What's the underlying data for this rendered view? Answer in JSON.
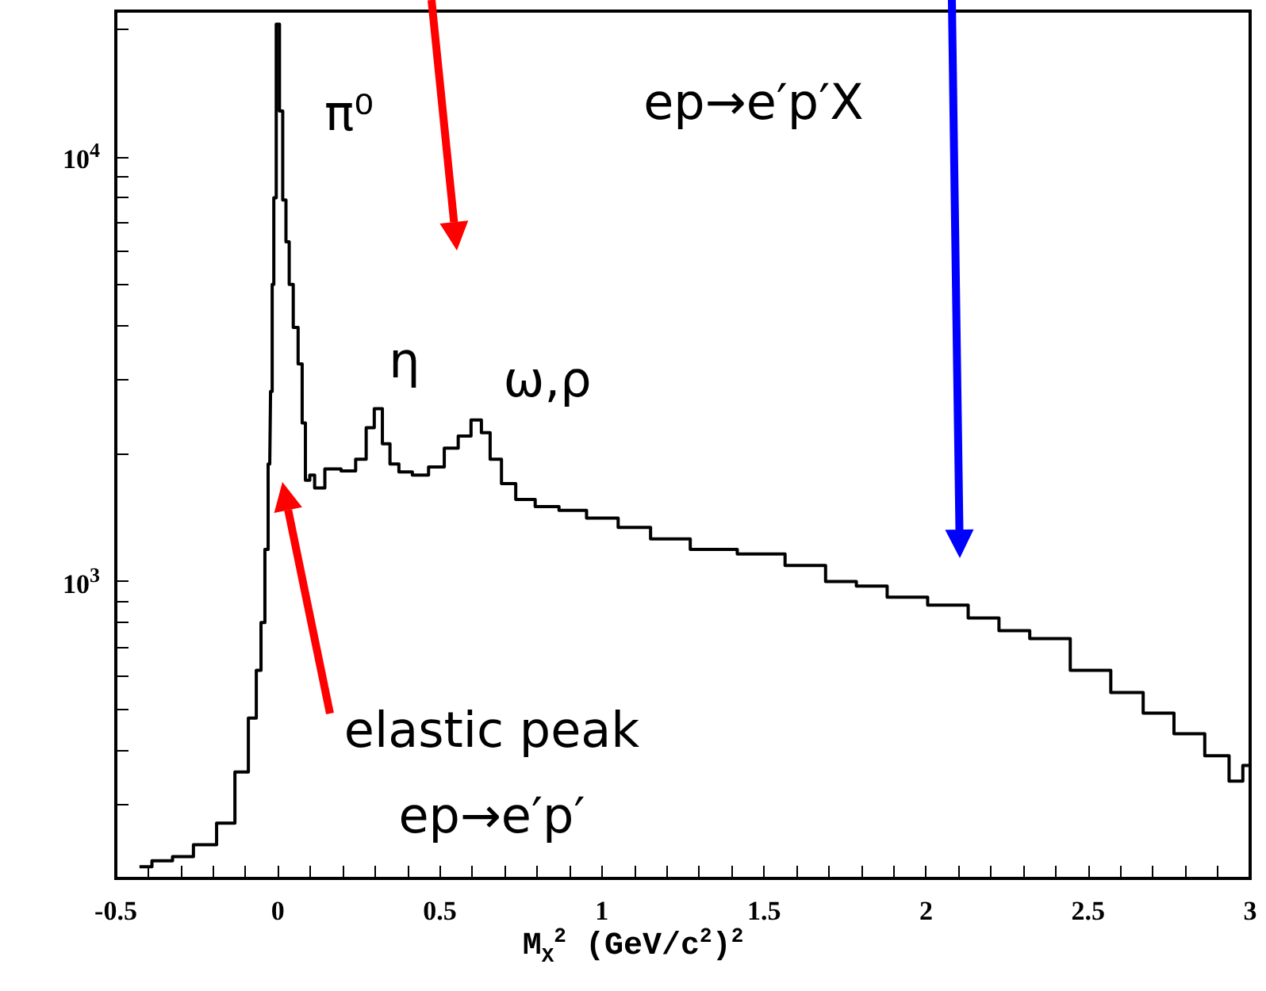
{
  "chart_data": {
    "type": "step",
    "xlabel": "M$_{X}$$^{2}$  (GeV/c$^{2}$)$^{2}$",
    "x": [
      -0.427,
      -0.35,
      -0.3,
      -0.221,
      -0.157,
      -0.108,
      -0.074,
      -0.059,
      -0.045,
      -0.035,
      -0.025,
      -0.02,
      -0.015,
      -0.01,
      0.0,
      0.01,
      0.02,
      0.03,
      0.04,
      0.055,
      0.07,
      0.08,
      0.09,
      0.107,
      0.12,
      0.17,
      0.22,
      0.26,
      0.285,
      0.31,
      0.335,
      0.357,
      0.39,
      0.44,
      0.49,
      0.537,
      0.576,
      0.616,
      0.64,
      0.67,
      0.71,
      0.758,
      0.83,
      0.905,
      1.0,
      1.1,
      1.2,
      1.345,
      1.49,
      1.64,
      1.74,
      1.83,
      1.93,
      2.08,
      2.18,
      2.27,
      2.37,
      2.52,
      2.62,
      2.72,
      2.81,
      2.91,
      2.96,
      2.995
    ],
    "values": [
      213,
      220,
      225,
      240,
      270,
      356,
      477,
      618,
      800,
      1190,
      1890,
      2800,
      5000,
      8000,
      20500,
      12800,
      7900,
      6300,
      5000,
      3960,
      3250,
      2360,
      1730,
      1780,
      1660,
      1840,
      1820,
      1940,
      2300,
      2550,
      2110,
      1890,
      1810,
      1780,
      1860,
      2060,
      2200,
      2400,
      2240,
      1940,
      1700,
      1560,
      1500,
      1470,
      1410,
      1340,
      1260,
      1190,
      1160,
      1090,
      1000,
      975,
      918,
      880,
      820,
      766,
      734,
      618,
      548,
      490,
      438,
      389,
      339,
      369
    ],
    "color": "#000000",
    "log": "y",
    "xlim": [
      -0.5,
      3
    ],
    "xticks": [
      -0.5,
      {
        "value": -0.4,
        "label": null
      },
      {
        "value": -0.3,
        "label": null
      },
      {
        "value": -0.2,
        "label": null
      },
      {
        "value": -0.1,
        "label": null
      },
      0,
      {
        "value": 0.1,
        "label": null
      },
      {
        "value": 0.2,
        "label": null
      },
      {
        "value": 0.3,
        "label": null
      },
      {
        "value": 0.4,
        "label": null
      },
      0.5,
      {
        "value": 0.6,
        "label": null
      },
      {
        "value": 0.7,
        "label": null
      },
      {
        "value": 0.8,
        "label": null
      },
      {
        "value": 0.9,
        "label": null
      },
      1,
      {
        "value": 1.1,
        "label": null
      },
      {
        "value": 1.2,
        "label": null
      },
      {
        "value": 1.3,
        "label": null
      },
      {
        "value": 1.4,
        "label": null
      },
      1.5,
      {
        "value": 1.6,
        "label": null
      },
      {
        "value": 1.7,
        "label": null
      },
      {
        "value": 1.8,
        "label": null
      },
      {
        "value": 1.9,
        "label": null
      },
      2,
      {
        "value": 2.1,
        "label": null
      },
      {
        "value": 2.2,
        "label": null
      },
      {
        "value": 2.3,
        "label": null
      },
      {
        "value": 2.4,
        "label": null
      },
      2.5,
      {
        "value": 2.6,
        "label": null
      },
      {
        "value": 2.7,
        "label": null
      },
      {
        "value": 2.8,
        "label": null
      },
      {
        "value": 2.9,
        "label": null
      },
      3
    ],
    "ylim": [
      200,
      22000
    ],
    "yticks": [
      {
        "value": 300,
        "label": null
      },
      {
        "value": 400,
        "label": null
      },
      {
        "value": 500,
        "label": null
      },
      {
        "value": 600,
        "label": null
      },
      {
        "value": 700,
        "label": null
      },
      {
        "value": 800,
        "label": null
      },
      {
        "value": 900,
        "label": null
      },
      {
        "value": 1000,
        "label": "10$^{3}$"
      },
      {
        "value": 2000,
        "label": null
      },
      {
        "value": 3000,
        "label": null
      },
      {
        "value": 4000,
        "label": null
      },
      {
        "value": 5000,
        "label": null
      },
      {
        "value": 6000,
        "label": null
      },
      {
        "value": 7000,
        "label": null
      },
      {
        "value": 8000,
        "label": null
      },
      {
        "value": 9000,
        "label": null
      },
      {
        "value": 10000,
        "label": "10$^{4}$"
      },
      {
        "value": 20000,
        "label": null
      }
    ],
    "annotations": [
      "π⁰",
      "η",
      "ω,ρ",
      "ep→e′p′X",
      "elastic peak\nep→e′p′"
    ],
    "marker": "none",
    "line_style": "solid"
  }
}
